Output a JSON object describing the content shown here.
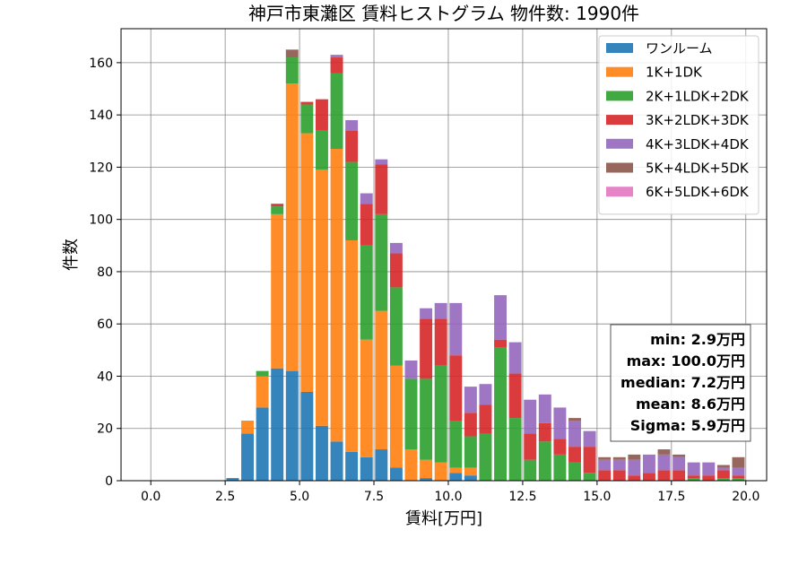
{
  "chart_data": {
    "type": "bar",
    "stacked": true,
    "title": "神戸市東灘区 賃料ヒストグラム  物件数: 1990件",
    "xlabel": "賃料[万円]",
    "ylabel": "件数",
    "xlim": [
      -1.0,
      20.7
    ],
    "ylim": [
      0,
      173
    ],
    "xticks": [
      0.0,
      2.5,
      5.0,
      7.5,
      10.0,
      12.5,
      15.0,
      17.5,
      20.0
    ],
    "yticks": [
      0,
      20,
      40,
      60,
      80,
      100,
      120,
      140,
      160
    ],
    "xtick_labels": [
      "0.0",
      "2.5",
      "5.0",
      "7.5",
      "10.0",
      "12.5",
      "15.0",
      "17.5",
      "20.0"
    ],
    "ytick_labels": [
      "0",
      "20",
      "40",
      "60",
      "80",
      "100",
      "120",
      "140",
      "160"
    ],
    "grid": true,
    "legend_position": "top-right",
    "bin_width": 0.5,
    "bins": [
      2.5,
      3.0,
      3.5,
      4.0,
      4.5,
      5.0,
      5.5,
      6.0,
      6.5,
      7.0,
      7.5,
      8.0,
      8.5,
      9.0,
      9.5,
      10.0,
      10.5,
      11.0,
      11.5,
      12.0,
      12.5,
      13.0,
      13.5,
      14.0,
      14.5,
      15.0,
      15.5,
      16.0,
      16.5,
      17.0,
      17.5,
      18.0,
      18.5,
      19.0,
      19.5
    ],
    "series": [
      {
        "name": "ワンルーム",
        "color": "#1f77b4",
        "values": [
          1,
          18,
          28,
          43,
          42,
          34,
          21,
          15,
          11,
          9,
          12,
          5,
          0,
          1,
          0,
          3,
          2,
          0,
          0,
          0,
          0,
          0,
          0,
          0,
          0,
          0,
          0,
          0,
          0,
          0,
          0,
          0,
          0,
          0,
          0
        ]
      },
      {
        "name": "1K+1DK",
        "color": "#ff7f0e",
        "values": [
          0,
          5,
          12,
          59,
          110,
          99,
          98,
          112,
          81,
          45,
          53,
          39,
          12,
          7,
          7,
          2,
          3,
          0,
          0,
          0,
          0,
          0,
          0,
          0,
          0,
          0,
          0,
          0,
          0,
          0,
          0,
          0,
          0,
          0,
          0
        ]
      },
      {
        "name": "2K+1LDK+2DK",
        "color": "#2ca02c",
        "values": [
          0,
          0,
          2,
          3,
          10,
          11,
          15,
          29,
          30,
          36,
          37,
          30,
          27,
          31,
          37,
          18,
          12,
          18,
          51,
          24,
          8,
          15,
          10,
          7,
          3,
          0,
          0,
          0,
          0,
          0,
          0,
          1,
          0,
          1,
          1
        ]
      },
      {
        "name": "3K+2LDK+3DK",
        "color": "#d62728",
        "values": [
          0,
          0,
          0,
          1,
          0,
          1,
          12,
          6,
          12,
          16,
          19,
          13,
          0,
          23,
          18,
          25,
          9,
          11,
          3,
          17,
          10,
          7,
          6,
          6,
          10,
          4,
          4,
          2,
          3,
          4,
          4,
          1,
          2,
          3,
          1
        ]
      },
      {
        "name": "4K+3LDK+4DK",
        "color": "#9467bd",
        "values": [
          0,
          0,
          0,
          0,
          0,
          0,
          0,
          1,
          4,
          4,
          2,
          4,
          7,
          4,
          6,
          20,
          10,
          8,
          17,
          12,
          13,
          11,
          12,
          10,
          6,
          4,
          4,
          6,
          7,
          6,
          5,
          5,
          5,
          1,
          3
        ]
      },
      {
        "name": "5K+4LDK+5DK",
        "color": "#8c564b",
        "values": [
          0,
          0,
          0,
          0,
          3,
          0,
          0,
          0,
          0,
          0,
          0,
          0,
          0,
          0,
          0,
          0,
          0,
          0,
          0,
          0,
          0,
          0,
          0,
          1,
          0,
          1,
          1,
          2,
          0,
          2,
          1,
          0,
          0,
          1,
          4
        ]
      },
      {
        "name": "6K+5LDK+6DK",
        "color": "#e377c2",
        "values": [
          0,
          0,
          0,
          0,
          0,
          0,
          0,
          0,
          0,
          0,
          0,
          0,
          0,
          0,
          0,
          0,
          0,
          0,
          0,
          0,
          0,
          0,
          0,
          0,
          0,
          0,
          0,
          0,
          0,
          0,
          0,
          0,
          0,
          0,
          0
        ]
      }
    ],
    "stats": {
      "lines": [
        "min: 2.9万円",
        "max: 100.0万円",
        "median: 7.2万円",
        "mean: 8.6万円",
        "Sigma: 5.9万円"
      ]
    }
  }
}
